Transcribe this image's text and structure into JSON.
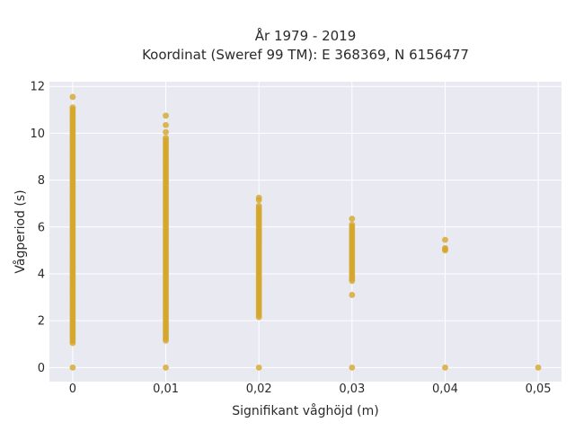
{
  "chart_data": {
    "type": "scatter",
    "title": "År 1979 - 2019",
    "subtitle": "Koordinat (Sweref 99 TM): E 368369, N 6156477",
    "xlabel": "Signifikant våghöjd (m)",
    "ylabel": "Vågperiod (s)",
    "xlim": [
      -0.0025,
      0.0525
    ],
    "ylim": [
      -0.6,
      12.2
    ],
    "x_ticks": [
      0,
      0.01,
      0.02,
      0.03,
      0.04,
      0.05
    ],
    "x_tick_labels": [
      "0",
      "0,01",
      "0,02",
      "0,03",
      "0,04",
      "0,05"
    ],
    "y_ticks": [
      0,
      2,
      4,
      6,
      8,
      10,
      12
    ],
    "y_tick_labels": [
      "0",
      "2",
      "4",
      "6",
      "8",
      "10",
      "12"
    ],
    "grid": true,
    "background": "#e9e9f1",
    "marker_color": "#d4a62a",
    "columns": [
      {
        "x": 0,
        "range": [
          1.05,
          11.1
        ],
        "outliers": [
          0.0,
          11.55
        ]
      },
      {
        "x": 0.01,
        "range": [
          1.15,
          9.8
        ],
        "outliers": [
          0.0,
          10.05,
          10.35,
          10.75
        ]
      },
      {
        "x": 0.02,
        "range": [
          2.15,
          6.9
        ],
        "outliers": [
          0.0,
          7.15,
          7.25
        ]
      },
      {
        "x": 0.03,
        "range": [
          3.7,
          6.1
        ],
        "outliers": [
          0.0,
          3.1,
          6.35
        ]
      },
      {
        "x": 0.04,
        "range": [
          5.0,
          5.1
        ],
        "outliers": [
          0.0,
          5.45
        ]
      },
      {
        "x": 0.05,
        "range": [],
        "outliers": [
          0.0
        ]
      }
    ]
  }
}
